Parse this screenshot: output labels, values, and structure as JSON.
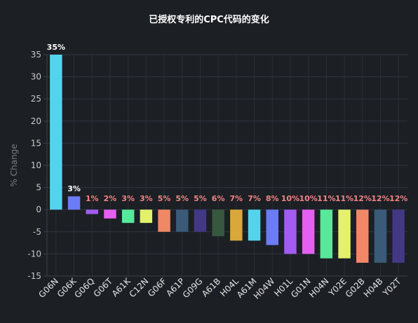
{
  "chart_data": {
    "type": "bar",
    "title": "已授权专利的CPC代码的变化",
    "xlabel": "",
    "ylabel": "% Change",
    "ylim": [
      -15,
      35
    ],
    "yticks": [
      -15,
      -10,
      -5,
      0,
      5,
      10,
      15,
      20,
      25,
      30,
      35
    ],
    "grid": true,
    "categories": [
      "G06N",
      "G06K",
      "G06Q",
      "G06T",
      "A61K",
      "C12N",
      "G06F",
      "A61P",
      "G09G",
      "A61B",
      "H04L",
      "A61M",
      "H04W",
      "H01L",
      "G01N",
      "H04N",
      "Y02E",
      "G02B",
      "H04B",
      "Y02T"
    ],
    "values": [
      35,
      3,
      -1,
      -2,
      -3,
      -3,
      -5,
      -5,
      -5,
      -6,
      -7,
      -7,
      -8,
      -10,
      -10,
      -11,
      -11,
      -12,
      -12,
      -12
    ],
    "data_labels": [
      "35%",
      "3%",
      "1%",
      "2%",
      "3%",
      "3%",
      "5%",
      "5%",
      "5%",
      "6%",
      "7%",
      "7%",
      "8%",
      "10%",
      "10%",
      "11%",
      "11%",
      "12%",
      "12%",
      "12%"
    ],
    "colors": [
      "#56d3ec",
      "#6b7cf6",
      "#a25cf0",
      "#e55ff0",
      "#59e89a",
      "#e3f26a",
      "#f08866",
      "#3b5a78",
      "#423884",
      "#37573f",
      "#d9a83a",
      "#56d3ec",
      "#6b7cf6",
      "#a25cf0",
      "#e55ff0",
      "#59e89a",
      "#e3f26a",
      "#f08866",
      "#3b5a78",
      "#423884"
    ]
  }
}
